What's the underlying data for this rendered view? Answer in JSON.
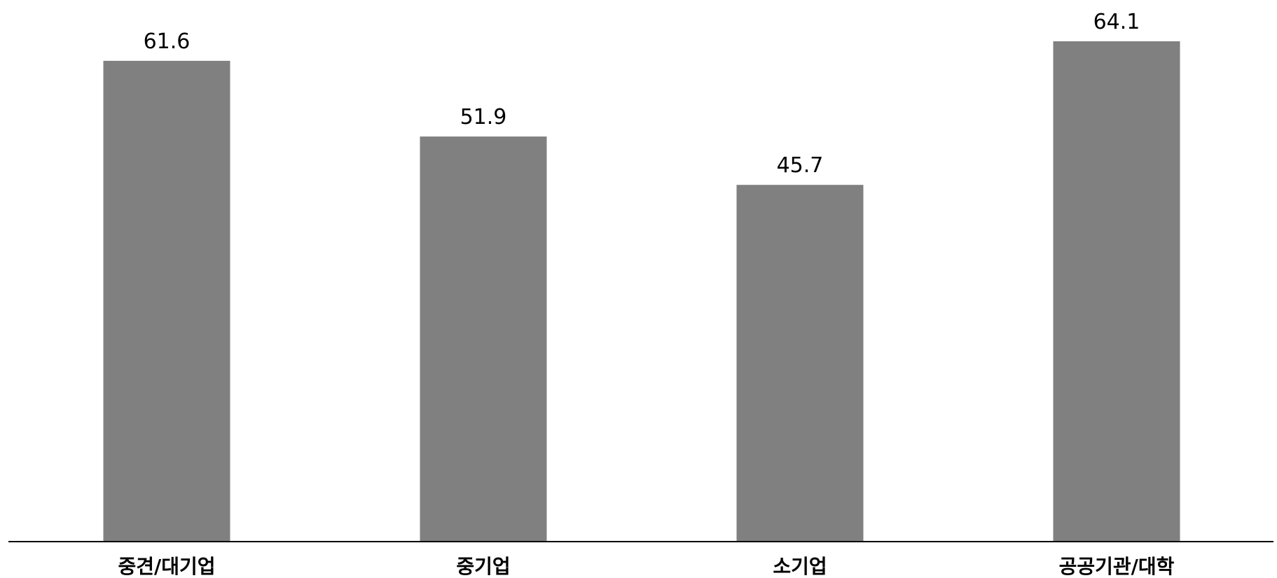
{
  "chart_data": {
    "type": "bar",
    "categories": [
      "중견/대기업",
      "중기업",
      "소기업",
      "공공기관/대학"
    ],
    "values": [
      61.6,
      51.9,
      45.7,
      64.1
    ],
    "value_labels": [
      "61.6",
      "51.9",
      "45.7",
      "64.1"
    ],
    "title": "",
    "xlabel": "",
    "ylabel": "",
    "ylim": [
      0,
      64.1
    ],
    "grid": false,
    "legend": "none",
    "bar_color": "#808080",
    "axis_color": "#000000"
  }
}
